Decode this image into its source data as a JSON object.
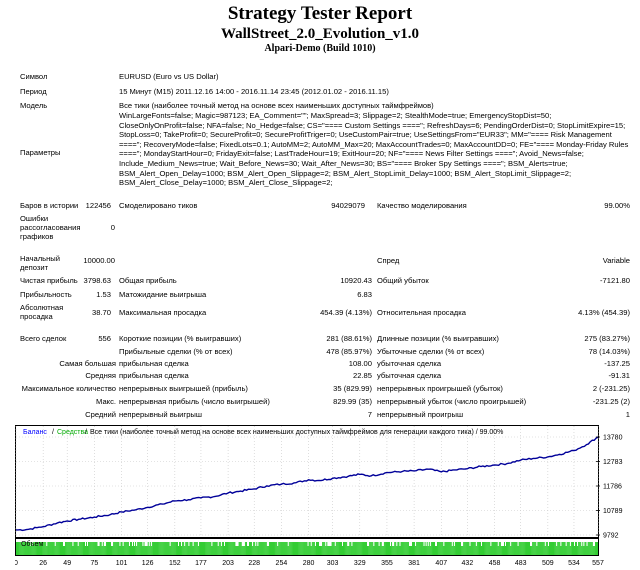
{
  "header": {
    "title": "Strategy Tester Report",
    "expert": "WallStreet_2.0_Evolution_v1.0",
    "server": "Alpari-Demo (Build 1010)"
  },
  "info": {
    "symbol_label": "Символ",
    "symbol_value": "EURUSD (Euro vs US Dollar)",
    "period_label": "Период",
    "period_value": "15 Минут (M15) 2011.12.16 14:00 - 2016.11.14 23:45 (2012.01.02 - 2016.11.15)",
    "model_label": "Модель",
    "model_value": "Все тики (наиболее точный метод на основе всех наименьших доступных таймфреймов)",
    "params_label": "Параметры",
    "params_value": "WinLargeFonts=false; Magic=987123; EA_Comment=\"\"; MaxSpread=3; Slippage=2; StealthMode=true; EmergencyStopDist=50; CloseOnlyOnProfit=false; NFA=false; No_Hedge=false; CS=\"==== Custom Settings ====\"; RefreshDays=6; PendingOrderDist=0; StopLimitExpire=15; StopLoss=0; TakeProfit=0; SecureProfit=0; SecureProfitTriger=0; UseCustomPair=true; UseSettingsFrom=\"EUR33\"; MM=\"==== Risk Management ====\"; RecoveryMode=false; FixedLots=0.1; AutoMM=2; AutoMM_Max=20; MaxAccountTrades=0; MaxAccountDD=0; FE=\"==== Monday-Friday Rules ====\"; MondayStartHour=0; FridayExit=false; LastTradeHour=19; ExitHour=20; NF=\"==== News Filter Settings ====\"; Avoid_News=false; Include_Medium_News=true; Wait_Before_News=30; Wait_After_News=30; BS=\"==== Broker Spy Settings ====\"; BSM_Alerts=true; BSM_Alert_Open_Delay=1000; BSM_Alert_Open_Slippage=2; BSM_Alert_StopLimit_Delay=1000; BSM_Alert_StopLimit_Slippage=2; BSM_Alert_Close_Delay=1000; BSM_Alert_Close_Slippage=2;"
  },
  "stats": {
    "bars_label": "Баров в истории",
    "bars_value": "122456",
    "ticks_label": "Смоделировано тиков",
    "ticks_value": "94029079",
    "quality_label": "Качество моделирования",
    "quality_value": "99.00%",
    "errors_label": "Ошибки рассогласования графиков",
    "errors_value": "0",
    "deposit_label": "Начальный депозит",
    "deposit_value": "10000.00",
    "spread_label": "Спред",
    "spread_value": "Variable",
    "net_label": "Чистая прибыль",
    "net_value": "3798.63",
    "gross_profit_label": "Общая прибыль",
    "gross_profit_value": "10920.43",
    "gross_loss_label": "Общий убыток",
    "gross_loss_value": "-7121.80",
    "pf_label": "Прибыльность",
    "pf_value": "1.53",
    "payoff_label": "Матожидание выигрыша",
    "payoff_value": "6.83",
    "abs_dd_label": "Абсолютная просадка",
    "abs_dd_value": "38.70",
    "max_dd_label": "Максимальная просадка",
    "max_dd_value": "454.39 (4.13%)",
    "rel_dd_label": "Относительная просадка",
    "rel_dd_value": "4.13% (454.39)",
    "total_label": "Всего сделок",
    "total_value": "556",
    "short_label": "Короткие позиции (% выигравших)",
    "short_value": "281 (88.61%)",
    "long_label": "Длинные позиции (% выигравших)",
    "long_value": "275 (83.27%)",
    "profit_trades_label": "Прибыльные сделки (% от всех)",
    "profit_trades_value": "478 (85.97%)",
    "loss_trades_label": "Убыточные сделки (% от всех)",
    "loss_trades_value": "78 (14.03%)",
    "largest_label": "Самая большая",
    "largest_profit_label": "прибыльная сделка",
    "largest_profit_value": "108.00",
    "largest_loss_label": "убыточная сделка",
    "largest_loss_value": "-137.25",
    "average_label": "Средняя",
    "average_profit_label": "прибыльная сделка",
    "average_profit_value": "22.85",
    "average_loss_label": "убыточная сделка",
    "average_loss_value": "-91.31",
    "max_count_label": "Максимальное количество",
    "max_cons_wins_label": "непрерывных выигрышей (прибыль)",
    "max_cons_wins_value": "35 (829.99)",
    "max_cons_losses_label": "непрерывных проигрышей (убыток)",
    "max_cons_losses_value": "2 (-231.25)",
    "max_label": "Макс.",
    "max_cons_profit_label": "непрерывная прибыль (число выигрышей)",
    "max_cons_profit_value": "829.99 (35)",
    "max_cons_loss_label": "непрерывный убыток (число проигрышей)",
    "max_cons_loss_value": "-231.25 (2)",
    "avg_label": "Средний",
    "avg_cons_wins_label": "непрерывный выигрыш",
    "avg_cons_wins_value": "7",
    "avg_cons_losses_label": "непрерывный проигрыш",
    "avg_cons_losses_value": "1"
  },
  "chart_data": {
    "type": "line",
    "legend_balance": "Баланс",
    "legend_equity": "Средства",
    "legend_text": "Все тики (наиболее точный метод на основе всех наименьших доступных таймфреймов для генерации каждого тика) / 99.00%",
    "volume_label": "Объем",
    "x_ticks": [
      "0",
      "26",
      "49",
      "75",
      "101",
      "126",
      "152",
      "177",
      "203",
      "228",
      "254",
      "280",
      "303",
      "329",
      "355",
      "381",
      "407",
      "432",
      "458",
      "483",
      "509",
      "534",
      "557"
    ],
    "y_ticks": [
      13780,
      12783,
      11786,
      10789,
      9792
    ],
    "ylim": [
      9792,
      13780
    ],
    "trades": 557,
    "balance": [
      [
        0,
        10000
      ],
      [
        10,
        10010
      ],
      [
        20,
        10090
      ],
      [
        26,
        10130
      ],
      [
        40,
        10290
      ],
      [
        49,
        10360
      ],
      [
        60,
        10430
      ],
      [
        75,
        10520
      ],
      [
        90,
        10620
      ],
      [
        101,
        10730
      ],
      [
        115,
        10820
      ],
      [
        126,
        10920
      ],
      [
        140,
        11050
      ],
      [
        152,
        11180
      ],
      [
        165,
        11230
      ],
      [
        177,
        11300
      ],
      [
        190,
        11360
      ],
      [
        203,
        11500
      ],
      [
        215,
        11580
      ],
      [
        228,
        11670
      ],
      [
        240,
        11790
      ],
      [
        254,
        11860
      ],
      [
        268,
        11920
      ],
      [
        280,
        12040
      ],
      [
        290,
        12010
      ],
      [
        303,
        12100
      ],
      [
        318,
        12180
      ],
      [
        329,
        12260
      ],
      [
        340,
        12200
      ],
      [
        355,
        12330
      ],
      [
        370,
        12380
      ],
      [
        381,
        12400
      ],
      [
        395,
        12470
      ],
      [
        407,
        12360
      ],
      [
        420,
        12440
      ],
      [
        432,
        12490
      ],
      [
        445,
        12580
      ],
      [
        458,
        12640
      ],
      [
        470,
        12700
      ],
      [
        483,
        12840
      ],
      [
        495,
        12910
      ],
      [
        509,
        12970
      ],
      [
        520,
        13070
      ],
      [
        534,
        13230
      ],
      [
        546,
        13470
      ],
      [
        557,
        13780
      ]
    ]
  }
}
